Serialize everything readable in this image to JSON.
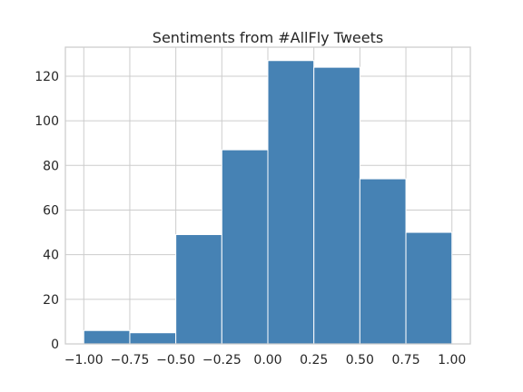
{
  "chart_data": {
    "type": "bar",
    "title": "Sentiments from #AllFly Tweets",
    "xlabel": "",
    "ylabel": "",
    "bin_edges": [
      -1.0,
      -0.75,
      -0.5,
      -0.25,
      0.0,
      0.25,
      0.5,
      0.75,
      1.0
    ],
    "values": [
      6,
      5,
      49,
      87,
      127,
      124,
      74,
      50
    ],
    "xlim": [
      -1.1,
      1.1
    ],
    "ylim": [
      0,
      133
    ],
    "x_ticks": [
      -1.0,
      -0.75,
      -0.5,
      -0.25,
      0.0,
      0.25,
      0.5,
      0.75,
      1.0
    ],
    "x_tick_labels": [
      "−1.00",
      "−0.75",
      "−0.50",
      "−0.25",
      "0.00",
      "0.25",
      "0.50",
      "0.75",
      "1.00"
    ],
    "y_ticks": [
      0,
      20,
      40,
      60,
      80,
      100,
      120
    ],
    "y_tick_labels": [
      "0",
      "20",
      "40",
      "60",
      "80",
      "100",
      "120"
    ],
    "grid": true,
    "bar_color": "#4682b4",
    "grid_color": "#cccccc",
    "frame_color": "#cccccc"
  }
}
